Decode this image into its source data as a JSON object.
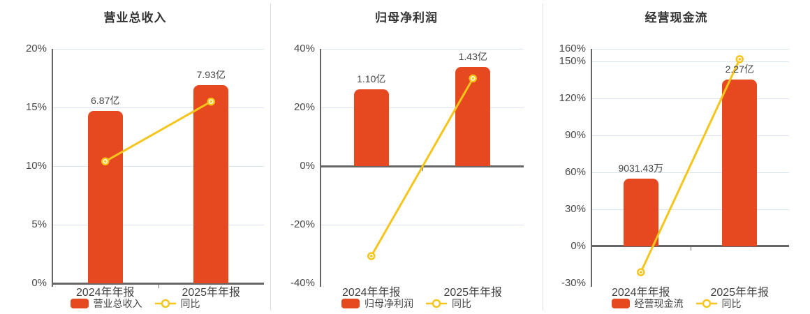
{
  "colors": {
    "bar": "#e6481f",
    "line": "#f5c51b",
    "grid": "#dbe3f2",
    "axis": "#666666",
    "tick_text": "#4a4a4a",
    "label_text": "#444444",
    "title_text": "#333333",
    "divider": "#dddddd",
    "marker_fill": "#ffffff"
  },
  "chart_data": [
    {
      "type": "bar+line",
      "title": "营业总收入",
      "categories": [
        "2024年年报",
        "2025年年报"
      ],
      "axis": {
        "min": 0,
        "max": 20,
        "ticks": [
          {
            "label": "20%",
            "value": 20
          },
          {
            "label": "15%",
            "value": 15
          },
          {
            "label": "10%",
            "value": 10
          },
          {
            "label": "5%",
            "value": 5
          },
          {
            "label": "0%",
            "value": 0
          }
        ]
      },
      "bar": {
        "name": "营业总收入",
        "value_labels": [
          "6.87亿",
          "7.93亿"
        ],
        "axis_pct": [
          14.7,
          16.9
        ]
      },
      "line": {
        "name": "同比",
        "values_pct": [
          10.4,
          15.5
        ]
      }
    },
    {
      "type": "bar+line",
      "title": "归母净利润",
      "categories": [
        "2024年年报",
        "2025年年报"
      ],
      "axis": {
        "min": -40,
        "max": 40,
        "ticks": [
          {
            "label": "40%",
            "value": 40
          },
          {
            "label": "20%",
            "value": 20
          },
          {
            "label": "0%",
            "value": 0
          },
          {
            "label": "-20%",
            "value": -20
          },
          {
            "label": "-40%",
            "value": -40
          }
        ]
      },
      "bar": {
        "name": "归母净利润",
        "value_labels": [
          "1.10亿",
          "1.43亿"
        ],
        "axis_pct": [
          26.2,
          33.8
        ]
      },
      "line": {
        "name": "同比",
        "values_pct": [
          -30.7,
          29.9
        ]
      }
    },
    {
      "type": "bar+line",
      "title": "经营现金流",
      "categories": [
        "2024年年报",
        "2025年年报"
      ],
      "axis": {
        "min": -30,
        "max": 160,
        "ticks": [
          {
            "label": "160%",
            "value": 160
          },
          {
            "label": "150%",
            "value": 150
          },
          {
            "label": "120%",
            "value": 120
          },
          {
            "label": "90%",
            "value": 90
          },
          {
            "label": "60%",
            "value": 60
          },
          {
            "label": "30%",
            "value": 30
          },
          {
            "label": "0%",
            "value": 0
          },
          {
            "label": "-30%",
            "value": -30
          }
        ]
      },
      "bar": {
        "name": "经营现金流",
        "value_labels": [
          "9031.43万",
          "2.27亿"
        ],
        "axis_pct": [
          54.9,
          135.2
        ]
      },
      "line": {
        "name": "同比",
        "values_pct": [
          -21.0,
          151.6
        ]
      }
    }
  ]
}
